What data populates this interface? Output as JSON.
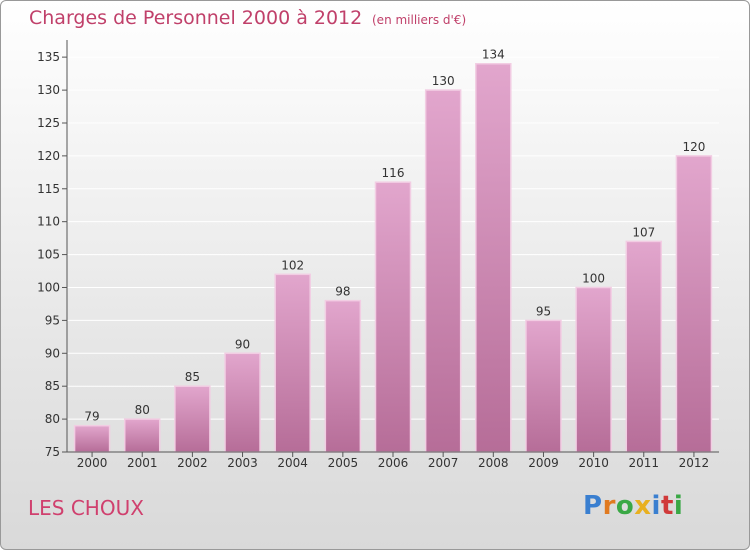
{
  "title": "Charges de Personnel 2000 à 2012",
  "subtitle": "(en milliers d'€)",
  "place_name": "LES CHOUX",
  "logo": {
    "text": "Proxiti",
    "letters": [
      {
        "char": "P",
        "color": "#3a7fd0"
      },
      {
        "char": "r",
        "color": "#e07a20"
      },
      {
        "char": "o",
        "color": "#3aa845"
      },
      {
        "char": "x",
        "color": "#e8b020"
      },
      {
        "char": "i",
        "color": "#3a7fd0"
      },
      {
        "char": "t",
        "color": "#d03a3a"
      },
      {
        "char": "i",
        "color": "#3aa845"
      }
    ]
  },
  "colors": {
    "title": "#c0406a",
    "bar_top": "#e2a6cd",
    "bar_bottom": "#b66d98",
    "bar_edge": "#f2cde3",
    "axis": "#555555",
    "grid": "#ffffff"
  },
  "chart_data": {
    "type": "bar",
    "categories": [
      "2000",
      "2001",
      "2002",
      "2003",
      "2004",
      "2005",
      "2006",
      "2007",
      "2008",
      "2009",
      "2010",
      "2011",
      "2012"
    ],
    "values": [
      79,
      80,
      85,
      90,
      102,
      98,
      116,
      130,
      134,
      95,
      100,
      107,
      120
    ],
    "data_labels": [
      "79",
      "80",
      "85",
      "90",
      "102",
      "98",
      "116",
      "130",
      "134",
      "95",
      "100",
      "107",
      "120"
    ],
    "ylim": [
      75,
      137
    ],
    "yticks": [
      75,
      80,
      85,
      90,
      95,
      100,
      105,
      110,
      115,
      120,
      125,
      130,
      135
    ],
    "title": "Charges de Personnel 2000 à 2012",
    "xlabel": "",
    "ylabel": "",
    "grid": true
  }
}
